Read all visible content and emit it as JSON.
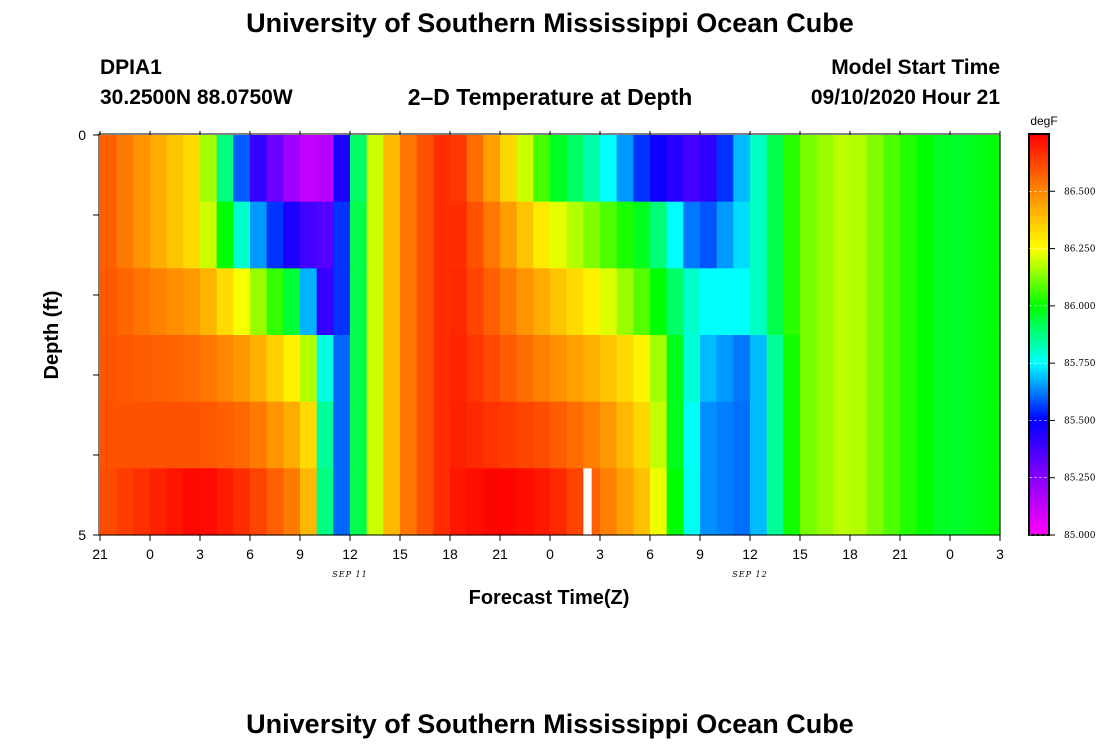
{
  "header": {
    "title_top": "University of Southern Mississippi Ocean Cube",
    "station": "DPIA1",
    "coords": "30.2500N 88.0750W",
    "plot_title": "2–D Temperature at Depth",
    "model_label": "Model Start Time",
    "model_time": "09/10/2020 Hour 21",
    "title_bottom": "University of Southern Mississippi Ocean Cube"
  },
  "chart_data": {
    "type": "heatmap",
    "title": "2–D Temperature at Depth",
    "xlabel": "Forecast Time(Z)",
    "ylabel": "Depth (ft)",
    "x_tick_labels": [
      "21",
      "0",
      "3",
      "6",
      "9",
      "12",
      "15",
      "18",
      "21",
      "0",
      "3",
      "6",
      "9",
      "12",
      "15",
      "18",
      "21",
      "0",
      "3"
    ],
    "x_date_labels": [
      {
        "label": "SEP 11",
        "tick_index": 5
      },
      {
        "label": "SEP 12",
        "tick_index": 13
      }
    ],
    "y_tick_labels": [
      {
        "label": "0",
        "value": 0
      },
      {
        "label": "5",
        "value": 5
      }
    ],
    "y_range": [
      0,
      5
    ],
    "depth_levels": [
      0,
      1,
      2,
      3,
      4,
      5
    ],
    "colorbar": {
      "unit": "degF",
      "min": 85.0,
      "max": 86.75,
      "ticks": [
        "85.000",
        "85.250",
        "85.500",
        "85.750",
        "86.000",
        "86.250",
        "86.500"
      ],
      "palette": [
        "#ff00ff",
        "#8800ff",
        "#0000ff",
        "#00ffff",
        "#00ff00",
        "#ffff00",
        "#ff8800",
        "#ff0000"
      ]
    },
    "hours_since_start": [
      0,
      6,
      9,
      12,
      13,
      14,
      15,
      16,
      17,
      18,
      21,
      24,
      27,
      30,
      33,
      36,
      39,
      42,
      45,
      48,
      51,
      54
    ],
    "series": [
      {
        "name": "depth 0 ft",
        "values": [
          86.6,
          86.3,
          85.45,
          85.15,
          85.1,
          85.2,
          85.7,
          86.1,
          86.3,
          86.5,
          86.7,
          86.4,
          86.0,
          85.8,
          85.5,
          85.35,
          85.75,
          86.1,
          86.2,
          86.05,
          85.95,
          86.0
        ]
      },
      {
        "name": "depth 1 ft",
        "values": [
          86.6,
          86.3,
          85.7,
          85.4,
          85.35,
          85.35,
          85.75,
          86.1,
          86.3,
          86.5,
          86.7,
          86.5,
          86.25,
          86.1,
          85.95,
          85.55,
          85.75,
          86.1,
          86.2,
          86.05,
          85.95,
          86.0
        ]
      },
      {
        "name": "depth 2 ft",
        "values": [
          86.6,
          86.45,
          86.2,
          85.9,
          85.45,
          85.35,
          85.75,
          86.1,
          86.3,
          86.5,
          86.7,
          86.55,
          86.4,
          86.25,
          86.05,
          85.75,
          85.75,
          86.1,
          86.2,
          86.05,
          85.95,
          86.0
        ]
      },
      {
        "name": "depth 3 ft",
        "values": [
          86.6,
          86.55,
          86.45,
          86.25,
          86.1,
          85.45,
          85.75,
          86.1,
          86.3,
          86.5,
          86.7,
          86.6,
          86.5,
          86.4,
          86.25,
          85.7,
          85.6,
          86.1,
          86.2,
          86.05,
          85.95,
          86.0
        ]
      },
      {
        "name": "depth 4 ft",
        "values": [
          86.6,
          86.6,
          86.55,
          86.4,
          86.25,
          85.45,
          85.75,
          86.1,
          86.3,
          86.5,
          86.7,
          86.65,
          86.6,
          86.5,
          86.3,
          85.65,
          85.6,
          86.1,
          86.2,
          86.05,
          85.95,
          86.0
        ]
      },
      {
        "name": "depth 5 ft",
        "values": [
          86.6,
          86.75,
          86.65,
          86.5,
          86.3,
          85.45,
          85.75,
          86.1,
          86.3,
          86.5,
          86.7,
          86.75,
          86.7,
          86.55,
          86.35,
          85.65,
          85.6,
          86.1,
          86.2,
          86.05,
          85.95,
          86.0
        ]
      }
    ],
    "missing_data": [
      {
        "hours_since_start": 29,
        "depth_level": 5
      }
    ]
  }
}
